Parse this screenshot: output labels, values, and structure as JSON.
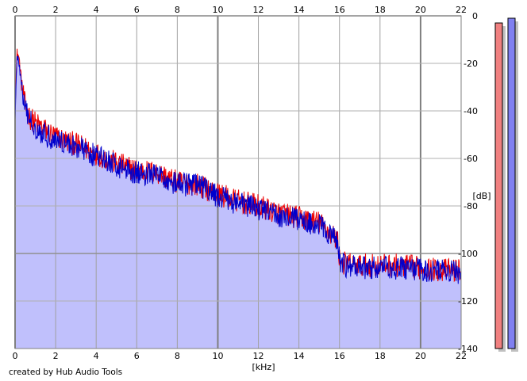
{
  "chart_data": {
    "type": "area",
    "xlabel": "[kHz]",
    "ylabel": "[dB]",
    "xlim": [
      0,
      22
    ],
    "ylim": [
      -140,
      0
    ],
    "x_ticks": [
      0,
      2,
      4,
      6,
      8,
      10,
      12,
      14,
      16,
      18,
      20,
      22
    ],
    "y_ticks": [
      0,
      -20,
      -40,
      -60,
      -80,
      -100,
      -120,
      -140
    ],
    "x_tick_labels": [
      "0",
      "2",
      "4",
      "6",
      "8",
      "10",
      "12",
      "14",
      "16",
      "18",
      "20",
      "22"
    ],
    "y_tick_labels": [
      "0",
      "-20",
      "-40",
      "-60",
      "-80",
      "-100",
      "-120",
      "-140"
    ],
    "grid": true,
    "series": [
      {
        "color": "#ee0000",
        "x": [
          0,
          0.1,
          0.2,
          0.3,
          0.4,
          0.5,
          0.75,
          1,
          1.5,
          2,
          3,
          4,
          5,
          6,
          7,
          8,
          9,
          10,
          11,
          12,
          13,
          14,
          15,
          15.5,
          15.9,
          16,
          16.2,
          17,
          18,
          19,
          20,
          21,
          22
        ],
        "values": [
          -38,
          -15,
          -18,
          -26,
          -33,
          -38,
          -43,
          -45,
          -48,
          -51,
          -54,
          -58,
          -62,
          -65,
          -66,
          -70,
          -71,
          -75,
          -78,
          -80,
          -83,
          -85,
          -87,
          -91,
          -94,
          -102,
          -104,
          -105,
          -105,
          -105,
          -106,
          -107,
          -107
        ]
      },
      {
        "color": "#0000cc",
        "x": [
          0,
          0.1,
          0.2,
          0.3,
          0.4,
          0.5,
          0.75,
          1,
          1.5,
          2,
          3,
          4,
          5,
          6,
          7,
          8,
          9,
          10,
          11,
          12,
          13,
          14,
          15,
          15.5,
          15.9,
          16,
          16.2,
          17,
          18,
          19,
          20,
          21,
          22
        ],
        "values": [
          -42,
          -17,
          -20,
          -28,
          -35,
          -40,
          -44,
          -47,
          -50,
          -52,
          -55,
          -59,
          -63,
          -66,
          -67,
          -71,
          -71,
          -76,
          -79,
          -81,
          -84,
          -86,
          -88,
          -92,
          -95,
          -103,
          -105,
          -106,
          -106,
          -106,
          -107,
          -107,
          -108
        ]
      }
    ],
    "level_meters": [
      {
        "color": "#f08080",
        "level_db": -3
      },
      {
        "color": "#8080f0",
        "level_db": -1
      }
    ],
    "fill_color": "#c0c0fc",
    "credit": "created by Hub Audio Tools"
  }
}
